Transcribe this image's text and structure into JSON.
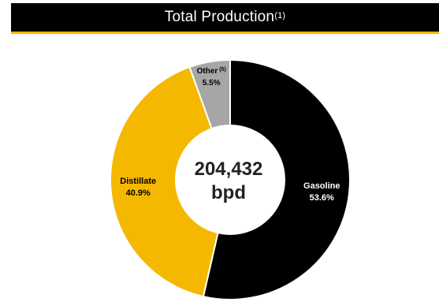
{
  "header": {
    "title": "Total Production",
    "title_sup": "(1)"
  },
  "chart_data": {
    "type": "pie",
    "donut": true,
    "center_label": {
      "value": "204,432",
      "unit": "bpd"
    },
    "slices": [
      {
        "name": "Gasoline",
        "note": "",
        "value": 53.6,
        "label": "53.6%",
        "color": "#000000",
        "text_color": "#ffffff"
      },
      {
        "name": "Distillate",
        "note": "",
        "value": 40.9,
        "label": "40.9%",
        "color": "#f5b800",
        "text_color": "#000000"
      },
      {
        "name": "Other",
        "note": "(5)",
        "value": 5.5,
        "label": "5.5%",
        "color": "#a6a6a6",
        "text_color": "#000000"
      }
    ],
    "start_angle_deg": 0,
    "direction": "clockwise"
  }
}
